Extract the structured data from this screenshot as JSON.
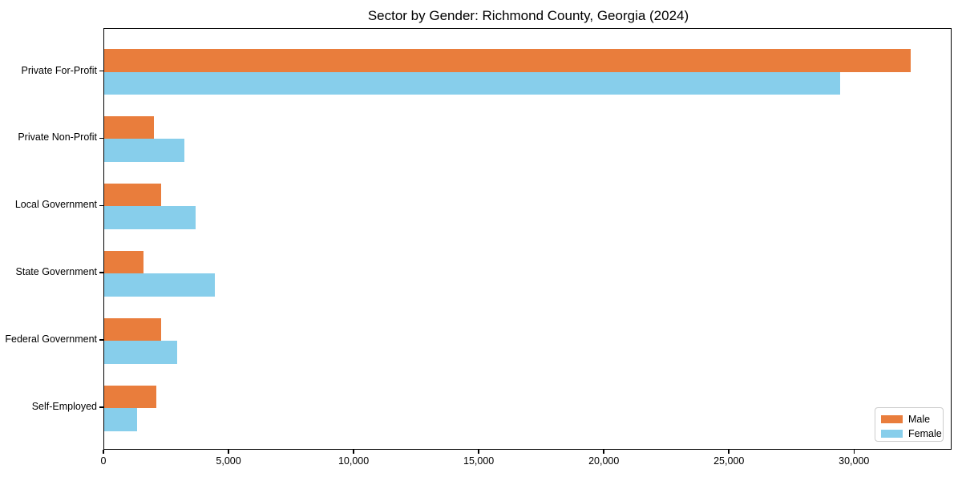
{
  "title": "Sector by Gender: Richmond County, Georgia (2024)",
  "colors": {
    "male": "#e97d3c",
    "female": "#87ceeb",
    "axis": "#000000",
    "legend_border": "#cccccc",
    "background": "#ffffff"
  },
  "legend": {
    "position": "lower right",
    "entries": [
      "Male",
      "Female"
    ]
  },
  "chart_data": {
    "type": "bar",
    "orientation": "horizontal",
    "title": "Sector by Gender: Richmond County, Georgia (2024)",
    "xlabel": "",
    "ylabel": "",
    "categories": [
      "Private For-Profit",
      "Private Non-Profit",
      "Local Government",
      "State Government",
      "Federal Government",
      "Self-Employed"
    ],
    "series": [
      {
        "name": "Male",
        "color": "#e97d3c",
        "values": [
          32240,
          2000,
          2280,
          1560,
          2260,
          2070
        ]
      },
      {
        "name": "Female",
        "color": "#87ceeb",
        "values": [
          29420,
          3190,
          3640,
          4420,
          2930,
          1320
        ]
      }
    ],
    "xlim": [
      0,
      33900
    ],
    "x_ticks": [
      0,
      5000,
      10000,
      15000,
      20000,
      25000,
      30000
    ],
    "x_tick_labels": [
      "0",
      "5,000",
      "10,000",
      "15,000",
      "20,000",
      "25,000",
      "30,000"
    ],
    "grid": false,
    "legend_position": "lower right"
  }
}
